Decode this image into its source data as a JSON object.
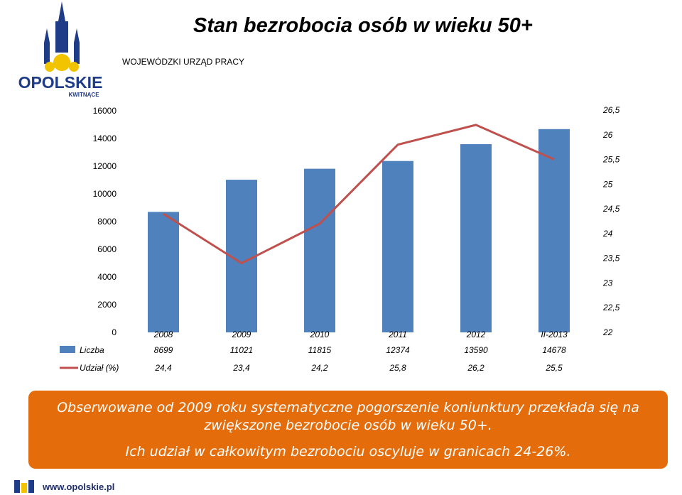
{
  "header": {
    "title": "Stan bezrobocia osób w wieku 50+",
    "office": "WOJEWÓDZKI URZĄD PRACY",
    "logo_text": "OPOLSKIE",
    "logo_tagline": "KWITNĄCE"
  },
  "chart_data": {
    "type": "bar",
    "title": "",
    "categories": [
      "2008",
      "2009",
      "2010",
      "2011",
      "2012",
      "II-2013"
    ],
    "series": [
      {
        "name": "Liczba",
        "type": "bar",
        "axis": "left",
        "color": "#4f81bd",
        "values": [
          8699,
          11021,
          11815,
          12374,
          13590,
          14678
        ]
      },
      {
        "name": "Udział (%)",
        "type": "line",
        "axis": "right",
        "color": "#c0504d",
        "values": [
          24.4,
          23.4,
          24.2,
          25.8,
          26.2,
          25.5
        ]
      }
    ],
    "left_axis": {
      "ylim": [
        0,
        16000
      ],
      "ticks": [
        "0",
        "2000",
        "4000",
        "6000",
        "8000",
        "10000",
        "12000",
        "14000",
        "16000"
      ]
    },
    "right_axis": {
      "ylim": [
        22,
        26.5
      ],
      "ticks": [
        "22",
        "22,5",
        "23",
        "23,5",
        "24",
        "24,5",
        "25",
        "25,5",
        "26",
        "26,5"
      ]
    },
    "table": {
      "rows": [
        {
          "label": "Liczba",
          "values": [
            "8699",
            "11021",
            "11815",
            "12374",
            "13590",
            "14678"
          ]
        },
        {
          "label": "Udział (%)",
          "values": [
            "24,4",
            "23,4",
            "24,2",
            "25,8",
            "26,2",
            "25,5"
          ]
        }
      ]
    },
    "grid": false,
    "legend": "data-table"
  },
  "callout": {
    "line1": "Obserwowane od  2009 roku systematyczne pogorszenie koniunktury przekłada się na",
    "line2": "zwiększone bezrobocie osób w wieku 50+.",
    "line3": "Ich udział w całkowitym bezrobociu oscyluje w granicach 24-26%."
  },
  "footer": {
    "url": "www.opolskie.pl"
  },
  "colors": {
    "accent": "#e46c0a",
    "bar": "#4f81bd",
    "line": "#c0504d",
    "brand": "#1f2d6b"
  }
}
